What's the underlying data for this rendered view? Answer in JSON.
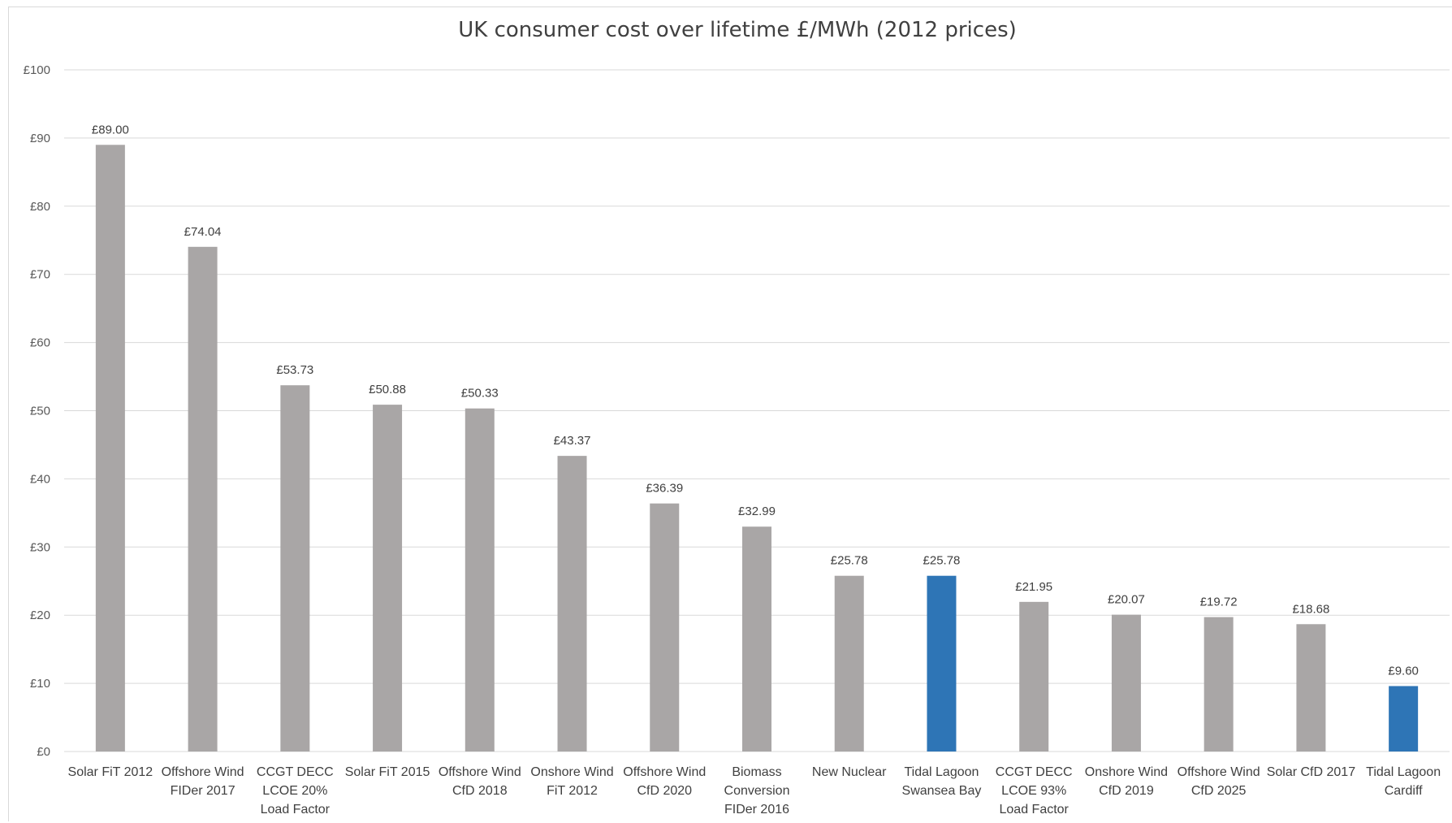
{
  "chart_data": {
    "type": "bar",
    "title": "UK consumer  cost over lifetime  £/MWh (2012 prices)",
    "xlabel": "",
    "ylabel": "",
    "ylim": [
      0,
      100
    ],
    "y_ticks": [
      "£0",
      "£10",
      "£20",
      "£30",
      "£40",
      "£50",
      "£60",
      "£70",
      "£80",
      "£90",
      "£100"
    ],
    "grid": true,
    "legend": "none",
    "categories": [
      [
        "Solar FiT 2012"
      ],
      [
        "Offshore Wind",
        "FIDer 2017"
      ],
      [
        "CCGT DECC",
        "LCOE 20%",
        "Load Factor"
      ],
      [
        "Solar FiT 2015"
      ],
      [
        "Offshore Wind",
        "CfD 2018"
      ],
      [
        "Onshore Wind",
        "FiT 2012"
      ],
      [
        "Offshore Wind",
        "CfD 2020"
      ],
      [
        "Biomass",
        "Conversion",
        "FIDer 2016"
      ],
      [
        "New Nuclear"
      ],
      [
        "Tidal Lagoon",
        "Swansea Bay"
      ],
      [
        "CCGT DECC",
        "LCOE 93%",
        "Load Factor"
      ],
      [
        "Onshore Wind",
        "CfD 2019"
      ],
      [
        "Offshore Wind",
        "CfD 2025"
      ],
      [
        "Solar CfD 2017"
      ],
      [
        "Tidal Lagoon",
        "Cardiff"
      ]
    ],
    "values": [
      89.0,
      74.04,
      53.73,
      50.88,
      50.33,
      43.37,
      36.39,
      32.99,
      25.78,
      25.78,
      21.95,
      20.07,
      19.72,
      18.68,
      9.6
    ],
    "data_labels": [
      "£89.00",
      "£74.04",
      "£53.73",
      "£50.88",
      "£50.33",
      "£43.37",
      "£36.39",
      "£32.99",
      "£25.78",
      "£25.78",
      "£21.95",
      "£20.07",
      "£19.72",
      "£18.68",
      "£9.60"
    ],
    "highlighted_indices": [
      9,
      14
    ],
    "colors": {
      "default_bar": "#a9a6a6",
      "highlight_bar": "#2e75b6",
      "grid": "#d9d9d9",
      "text": "#404040"
    }
  }
}
